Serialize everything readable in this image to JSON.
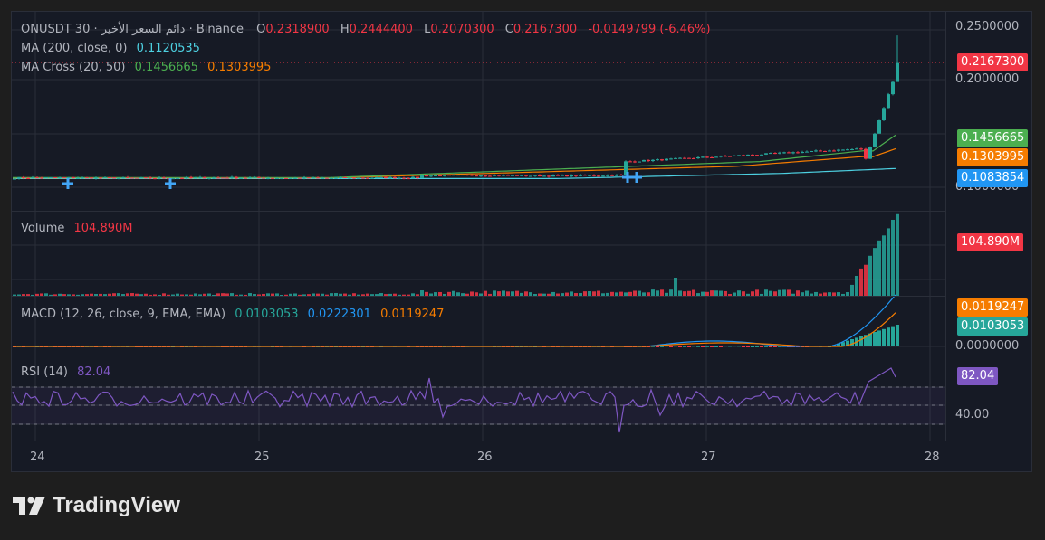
{
  "header": {
    "symbol": "ONUSDT 30",
    "sep1": " · ",
    "arabic": "دائم السعر الأخير",
    "sep2": " · Binance",
    "o_label": "O",
    "o_value": "0.2318900",
    "h_label": "H",
    "h_value": "0.2444400",
    "l_label": "L",
    "l_value": "0.2070300",
    "c_label": "C",
    "c_value": "0.2167300",
    "change": "-0.0149799 (-6.46%)"
  },
  "ma200": {
    "label": "MA (200, close, 0)",
    "value": "0.1120535"
  },
  "macross": {
    "label": "MA Cross (20, 50)",
    "v1": "0.1456665",
    "v2": "0.1303995"
  },
  "volume": {
    "label": "Volume",
    "value": "104.890M"
  },
  "macd": {
    "label": "MACD (12, 26, close, 9, EMA, EMA)",
    "hist": "0.0103053",
    "macd": "0.0222301",
    "signal": "0.0119247"
  },
  "rsi": {
    "label": "RSI (14)",
    "value": "82.04"
  },
  "price_axis": {
    "ticks": [
      "0.2500000",
      "0.2000000",
      "0.1000000"
    ],
    "tags": [
      {
        "text": "0.2167300",
        "color": "#f23645"
      },
      {
        "text": "0.1456665",
        "color": "#4caf50"
      },
      {
        "text": "0.1303995",
        "color": "#f57c00"
      },
      {
        "text": "0.1083854",
        "color": "#2196f3"
      }
    ]
  },
  "volume_axis": {
    "tag": "104.890M",
    "tag_color": "#f23645"
  },
  "macd_axis": {
    "tags": [
      {
        "text": "0.0119247",
        "color": "#f57c00"
      },
      {
        "text": "0.0103053",
        "color": "#26a69a"
      }
    ],
    "tick": "0.0000000"
  },
  "rsi_axis": {
    "tag": "82.04",
    "tag_color": "#7e57c2",
    "tick": "40.00"
  },
  "time_axis": {
    "ticks": [
      "24",
      "25",
      "26",
      "27",
      "28"
    ]
  },
  "brand": {
    "name": "TradingView"
  },
  "chart_data": {
    "type": "candlestick",
    "last_candle": {
      "open": 0.23189,
      "high": 0.24444,
      "low": 0.20703,
      "close": 0.21673
    },
    "ma200_last": 0.1120535,
    "ma_cross": {
      "fast": 0.1456665,
      "slow": 0.1303995
    },
    "volume_last": "104.890M",
    "macd": {
      "histogram": 0.0103053,
      "macd": 0.0222301,
      "signal": 0.0119247
    },
    "rsi": 82.04,
    "colors": {
      "up": "#26a69a",
      "down": "#f23645",
      "ma200": "#4dd0e1",
      "ma_fast": "#4caf50",
      "ma_slow": "#f57c00",
      "macd": "#2196f3",
      "signal": "#f57c00",
      "rsi": "#7e57c2"
    }
  }
}
